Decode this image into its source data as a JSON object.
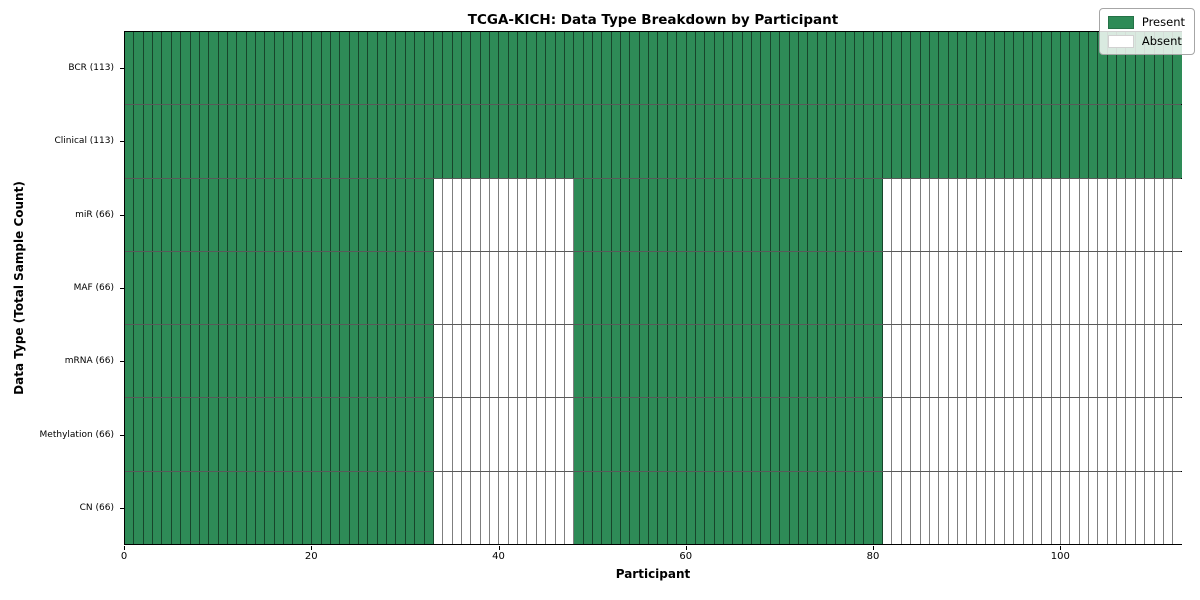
{
  "chart_data": {
    "type": "heatmap",
    "title": "TCGA-KICH: Data Type Breakdown by Participant",
    "xlabel": "Participant",
    "ylabel": "Data Type (Total Sample Count)",
    "x_range": [
      0,
      113
    ],
    "n_participants": 113,
    "x_ticks": [
      0,
      20,
      40,
      60,
      80,
      100
    ],
    "grid": "cell-outlines",
    "legend_position": "upper-right",
    "rows": [
      {
        "label": "BCR (113)",
        "present_count": 113,
        "present_ranges": [
          [
            0,
            113
          ]
        ]
      },
      {
        "label": "Clinical (113)",
        "present_count": 113,
        "present_ranges": [
          [
            0,
            113
          ]
        ]
      },
      {
        "label": "miR (66)",
        "present_count": 66,
        "present_ranges": [
          [
            0,
            33
          ],
          [
            48,
            81
          ]
        ]
      },
      {
        "label": "MAF (66)",
        "present_count": 66,
        "present_ranges": [
          [
            0,
            33
          ],
          [
            48,
            81
          ]
        ]
      },
      {
        "label": "mRNA (66)",
        "present_count": 66,
        "present_ranges": [
          [
            0,
            33
          ],
          [
            48,
            81
          ]
        ]
      },
      {
        "label": "Methylation (66)",
        "present_count": 66,
        "present_ranges": [
          [
            0,
            33
          ],
          [
            48,
            81
          ]
        ]
      },
      {
        "label": "CN (66)",
        "present_count": 66,
        "present_ranges": [
          [
            0,
            33
          ],
          [
            48,
            81
          ]
        ]
      }
    ],
    "legend": [
      {
        "label": "Present",
        "color": "#2e8b57"
      },
      {
        "label": "Absent",
        "color": "#ffffff"
      }
    ],
    "colors": {
      "present": "#2e8b57",
      "absent": "#ffffff",
      "cell_edge": "rgba(0,0,0,0.5)",
      "axis": "#000000",
      "background": "#ffffff"
    }
  }
}
